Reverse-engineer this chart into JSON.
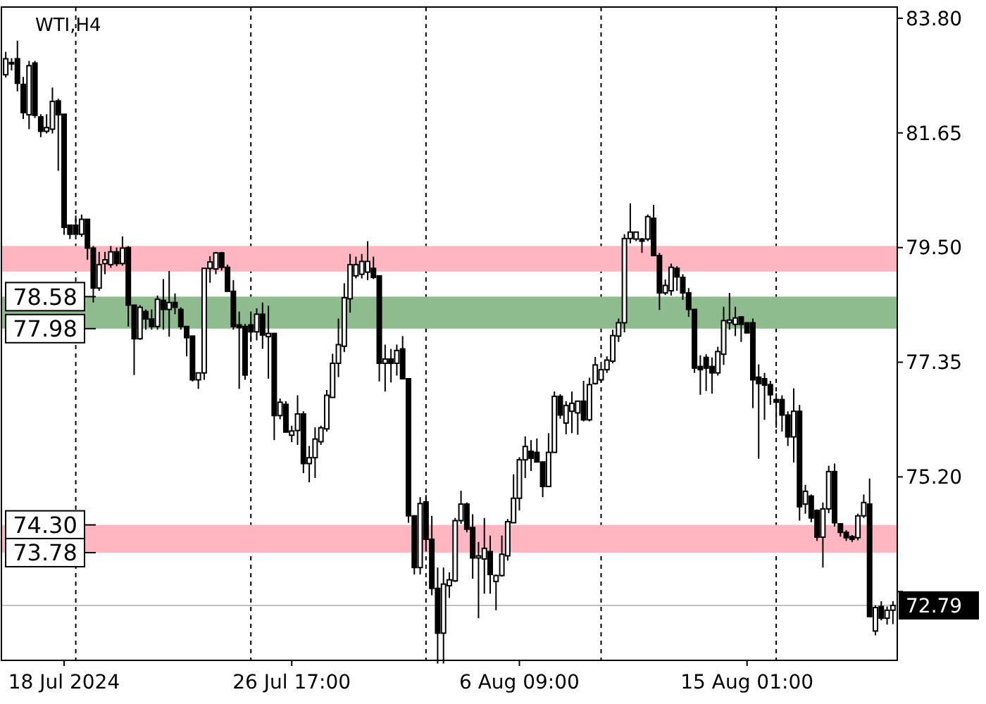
{
  "chart_data": {
    "type": "candlestick",
    "title": "WTI,H4",
    "categories": [
      null,
      null,
      null,
      null,
      null,
      null,
      null,
      null,
      null,
      null,
      "18 Jul 2024",
      null,
      null,
      null,
      null,
      null,
      null,
      null,
      null,
      null,
      null,
      null,
      null,
      null,
      null,
      null,
      null,
      null,
      null,
      null,
      null,
      null,
      null,
      null,
      null,
      null,
      null,
      null,
      null,
      null,
      null,
      null,
      null,
      null,
      null,
      null,
      null,
      null,
      null,
      "26 Jul 17:00",
      null,
      null,
      null,
      null,
      null,
      null,
      null,
      null,
      null,
      null,
      null,
      null,
      null,
      null,
      null,
      null,
      null,
      null,
      null,
      null,
      null,
      null,
      null,
      null,
      null,
      null,
      null,
      null,
      null,
      null,
      null,
      null,
      null,
      null,
      null,
      null,
      null,
      null,
      "6 Aug 09:00",
      null,
      null,
      null,
      null,
      null,
      null,
      null,
      null,
      null,
      null,
      null,
      null,
      null,
      null,
      null,
      null,
      null,
      null,
      null,
      null,
      null,
      null,
      null,
      null,
      null,
      null,
      null,
      null,
      null,
      null,
      null,
      null,
      null,
      null,
      null,
      null,
      null,
      null,
      "15 Aug 01:00",
      null,
      null,
      null,
      null,
      null,
      null,
      null,
      null,
      null,
      null,
      null,
      null,
      null,
      null,
      null,
      null,
      null,
      null,
      null,
      null,
      null,
      null,
      null,
      null,
      null
    ],
    "ohlc": [
      [
        82.74,
        83.17,
        82.69,
        83.04
      ],
      [
        82.95,
        83.05,
        82.82,
        82.97
      ],
      [
        83.04,
        83.38,
        82.43,
        82.58
      ],
      [
        82.56,
        82.7,
        81.91,
        82.03
      ],
      [
        81.99,
        83.0,
        81.72,
        82.91
      ],
      [
        82.96,
        83.0,
        81.93,
        81.98
      ],
      [
        81.95,
        82.0,
        81.57,
        81.68
      ],
      [
        81.68,
        82.0,
        81.64,
        81.75
      ],
      [
        81.72,
        82.5,
        81.64,
        82.24
      ],
      [
        82.25,
        82.29,
        80.94,
        81.99
      ],
      [
        82.0,
        82.0,
        79.74,
        79.88
      ],
      [
        79.92,
        79.92,
        79.66,
        79.75
      ],
      [
        79.92,
        80.1,
        79.75,
        79.75
      ],
      [
        79.75,
        80.12,
        79.7,
        80.03
      ],
      [
        80.03,
        80.03,
        79.27,
        79.49
      ],
      [
        79.49,
        79.53,
        78.47,
        78.74
      ],
      [
        78.74,
        79.42,
        78.69,
        79.18
      ],
      [
        79.2,
        79.42,
        79.0,
        79.27
      ],
      [
        79.18,
        79.53,
        79.12,
        79.42
      ],
      [
        79.42,
        79.5,
        79.15,
        79.2
      ],
      [
        79.2,
        79.71,
        79.16,
        79.49
      ],
      [
        79.5,
        79.53,
        78.02,
        78.42
      ],
      [
        78.42,
        78.42,
        77.11,
        77.79
      ],
      [
        77.79,
        78.42,
        77.77,
        78.38
      ],
      [
        78.3,
        78.34,
        77.96,
        78.16
      ],
      [
        78.16,
        78.34,
        77.96,
        78.02
      ],
      [
        78.02,
        78.6,
        77.96,
        78.53
      ],
      [
        78.51,
        78.91,
        77.96,
        78.34
      ],
      [
        78.34,
        79.06,
        77.83,
        78.47
      ],
      [
        78.47,
        78.64,
        78.25,
        78.38
      ],
      [
        78.34,
        78.38,
        77.96,
        78.02
      ],
      [
        78.02,
        78.02,
        77.46,
        77.81
      ],
      [
        77.84,
        77.84,
        76.99,
        77.02
      ],
      [
        77.02,
        77.15,
        76.85,
        77.15
      ],
      [
        77.15,
        79.11,
        77.02,
        79.11
      ],
      [
        79.11,
        79.34,
        78.84,
        79.23
      ],
      [
        79.1,
        79.42,
        79.0,
        79.4
      ],
      [
        79.4,
        79.42,
        79.07,
        79.13
      ],
      [
        79.13,
        79.18,
        78.68,
        78.68
      ],
      [
        78.68,
        78.89,
        77.96,
        78.02
      ],
      [
        78.05,
        78.3,
        76.85,
        78.0
      ],
      [
        78.02,
        78.07,
        77.02,
        77.11
      ],
      [
        78.05,
        78.3,
        77.73,
        77.92
      ],
      [
        77.92,
        78.36,
        77.76,
        78.25
      ],
      [
        78.25,
        78.47,
        77.6,
        77.86
      ],
      [
        77.83,
        78.41,
        77.04,
        77.89
      ],
      [
        77.89,
        77.89,
        75.89,
        76.35
      ],
      [
        76.35,
        76.67,
        76.28,
        76.6
      ],
      [
        76.56,
        76.62,
        76.04,
        76.04
      ],
      [
        75.98,
        76.16,
        75.85,
        76.06
      ],
      [
        76.07,
        76.73,
        75.8,
        76.38
      ],
      [
        76.38,
        76.43,
        75.27,
        75.45
      ],
      [
        75.45,
        75.78,
        75.1,
        75.56
      ],
      [
        75.56,
        76.13,
        75.18,
        75.91
      ],
      [
        75.86,
        76.16,
        75.8,
        76.12
      ],
      [
        76.1,
        76.83,
        76.05,
        76.73
      ],
      [
        76.69,
        77.51,
        76.69,
        77.33
      ],
      [
        77.33,
        78.17,
        77.07,
        77.68
      ],
      [
        77.65,
        78.83,
        77.54,
        78.56
      ],
      [
        78.54,
        79.38,
        78.28,
        79.18
      ],
      [
        78.97,
        79.33,
        78.92,
        79.18
      ],
      [
        79.0,
        79.38,
        78.92,
        79.24
      ],
      [
        79.04,
        79.62,
        78.89,
        79.24
      ],
      [
        79.11,
        79.33,
        78.91,
        78.94
      ],
      [
        78.97,
        78.97,
        76.99,
        77.33
      ],
      [
        77.33,
        77.68,
        76.8,
        77.41
      ],
      [
        77.41,
        77.6,
        76.97,
        77.33
      ],
      [
        77.33,
        77.68,
        77.1,
        77.57
      ],
      [
        77.6,
        77.84,
        77.04,
        77.04
      ],
      [
        77.04,
        77.04,
        74.34,
        74.47
      ],
      [
        74.47,
        74.47,
        73.37,
        73.5
      ],
      [
        73.5,
        74.82,
        73.37,
        74.7
      ],
      [
        74.73,
        74.86,
        73.8,
        74.03
      ],
      [
        74.03,
        74.47,
        72.98,
        73.11
      ],
      [
        73.11,
        73.5,
        71.7,
        72.27
      ],
      [
        72.27,
        73.5,
        71.7,
        73.19
      ],
      [
        73.16,
        73.41,
        72.93,
        73.27
      ],
      [
        73.25,
        74.43,
        73.23,
        74.38
      ],
      [
        74.38,
        74.94,
        74.32,
        74.69
      ],
      [
        74.69,
        74.72,
        74.16,
        74.22
      ],
      [
        74.25,
        74.5,
        73.29,
        73.68
      ],
      [
        73.68,
        73.98,
        72.55,
        73.72
      ],
      [
        73.66,
        74.43,
        73.01,
        73.86
      ],
      [
        73.8,
        74.1,
        73.01,
        73.37
      ],
      [
        73.24,
        73.37,
        72.7,
        73.35
      ],
      [
        73.35,
        74.1,
        73.33,
        73.75
      ],
      [
        73.72,
        74.41,
        73.63,
        74.36
      ],
      [
        74.34,
        75.25,
        74.34,
        74.8
      ],
      [
        74.8,
        75.57,
        74.57,
        75.52
      ],
      [
        75.52,
        75.96,
        75.18,
        75.77
      ],
      [
        75.68,
        75.89,
        75.31,
        75.55
      ],
      [
        75.66,
        75.92,
        75.48,
        75.48
      ],
      [
        75.48,
        75.48,
        74.82,
        75.02
      ],
      [
        75.02,
        76.02,
        75.02,
        75.66
      ],
      [
        75.66,
        76.8,
        75.66,
        76.71
      ],
      [
        76.71,
        76.75,
        76.29,
        76.36
      ],
      [
        76.21,
        76.62,
        76.0,
        76.54
      ],
      [
        76.43,
        76.8,
        76.02,
        76.58
      ],
      [
        76.4,
        76.62,
        75.99,
        76.62
      ],
      [
        76.62,
        77.0,
        76.24,
        76.27
      ],
      [
        76.27,
        77.06,
        76.24,
        76.93
      ],
      [
        76.95,
        77.45,
        76.93,
        77.3
      ],
      [
        77.02,
        77.28,
        76.97,
        77.21
      ],
      [
        77.21,
        77.46,
        77.15,
        77.39
      ],
      [
        77.37,
        77.96,
        77.33,
        77.85
      ],
      [
        77.84,
        78.17,
        77.73,
        78.09
      ],
      [
        78.09,
        79.75,
        77.91,
        79.67
      ],
      [
        79.67,
        80.33,
        79.58,
        79.79
      ],
      [
        79.66,
        79.79,
        79.62,
        79.79
      ],
      [
        79.66,
        79.68,
        79.4,
        79.62
      ],
      [
        79.66,
        80.12,
        79.62,
        80.08
      ],
      [
        80.05,
        80.3,
        79.35,
        79.35
      ],
      [
        79.35,
        79.4,
        78.33,
        78.65
      ],
      [
        78.65,
        78.9,
        78.61,
        78.79
      ],
      [
        78.69,
        79.2,
        78.6,
        79.13
      ],
      [
        79.11,
        79.15,
        78.69,
        78.95
      ],
      [
        78.94,
        79.0,
        78.52,
        78.65
      ],
      [
        78.65,
        78.74,
        78.2,
        78.34
      ],
      [
        78.34,
        78.34,
        77.15,
        77.24
      ],
      [
        77.27,
        77.48,
        76.74,
        77.21
      ],
      [
        77.44,
        77.5,
        76.81,
        77.24
      ],
      [
        77.27,
        77.44,
        76.76,
        77.15
      ],
      [
        77.15,
        77.64,
        77.1,
        77.55
      ],
      [
        77.5,
        78.39,
        77.3,
        78.13
      ],
      [
        78.09,
        78.65,
        77.96,
        78.14
      ],
      [
        78.06,
        78.39,
        77.84,
        78.18
      ],
      [
        78.2,
        78.2,
        77.73,
        78.06
      ],
      [
        78.09,
        78.09,
        77.9,
        77.9
      ],
      [
        78.09,
        78.17,
        76.49,
        77.02
      ],
      [
        77.07,
        77.31,
        75.54,
        76.95
      ],
      [
        77.04,
        77.15,
        76.27,
        76.92
      ],
      [
        76.93,
        77.0,
        76.55,
        76.74
      ],
      [
        76.65,
        76.77,
        76.12,
        76.6
      ],
      [
        76.65,
        76.73,
        76.05,
        76.36
      ],
      [
        76.36,
        76.43,
        75.78,
        75.95
      ],
      [
        75.95,
        76.86,
        75.47,
        76.43
      ],
      [
        76.43,
        76.55,
        74.38,
        74.64
      ],
      [
        74.69,
        75.05,
        74.51,
        74.93
      ],
      [
        74.84,
        74.87,
        74.35,
        74.43
      ],
      [
        74.57,
        74.59,
        74.0,
        74.07
      ],
      [
        74.07,
        74.72,
        73.5,
        74.6
      ],
      [
        74.6,
        75.41,
        74.52,
        75.3
      ],
      [
        75.3,
        75.45,
        74.27,
        74.34
      ],
      [
        74.32,
        74.33,
        74.08,
        74.16
      ],
      [
        74.16,
        74.2,
        74.0,
        74.06
      ],
      [
        74.08,
        74.11,
        73.98,
        74.03
      ],
      [
        74.06,
        74.51,
        74.01,
        74.47
      ],
      [
        74.47,
        74.87,
        74.43,
        74.72
      ],
      [
        74.69,
        75.17,
        72.58,
        72.58
      ],
      [
        72.31,
        72.79,
        72.23,
        72.75
      ],
      [
        72.77,
        72.87,
        72.51,
        72.55
      ],
      [
        72.55,
        72.77,
        72.43,
        72.7
      ],
      [
        72.7,
        72.87,
        72.44,
        72.79
      ]
    ],
    "ylim": [
      71.76,
      84.01
    ],
    "yticks": [
      {
        "value": 83.8,
        "label": "83.80"
      },
      {
        "value": 81.65,
        "label": "81.65"
      },
      {
        "value": 79.5,
        "label": "79.50"
      },
      77.35,
      {
        "value": 75.2,
        "label": "75.20"
      },
      {
        "value": 73.05,
        "label": null
      }
    ],
    "grid": "x",
    "bands": [
      {
        "axis": "y",
        "from": 79.05,
        "to": 79.53,
        "color": "#ffb6c1"
      },
      {
        "axis": "y",
        "from": 73.78,
        "to": 74.3,
        "color": "#ffb6c1"
      },
      {
        "axis": "y",
        "from": 77.98,
        "to": 78.58,
        "color": "#8fbc8f"
      }
    ],
    "ref_lines": [
      {
        "axis": "y",
        "value": 72.79,
        "label": "72.79",
        "color": "#c0c0c0"
      }
    ],
    "annotations": [
      {
        "text": "78.58",
        "y": 78.58
      },
      {
        "text": "77.98",
        "y": 77.98
      },
      {
        "text": "74.30",
        "y": 74.3
      },
      {
        "text": "73.78",
        "y": 73.78
      }
    ]
  }
}
